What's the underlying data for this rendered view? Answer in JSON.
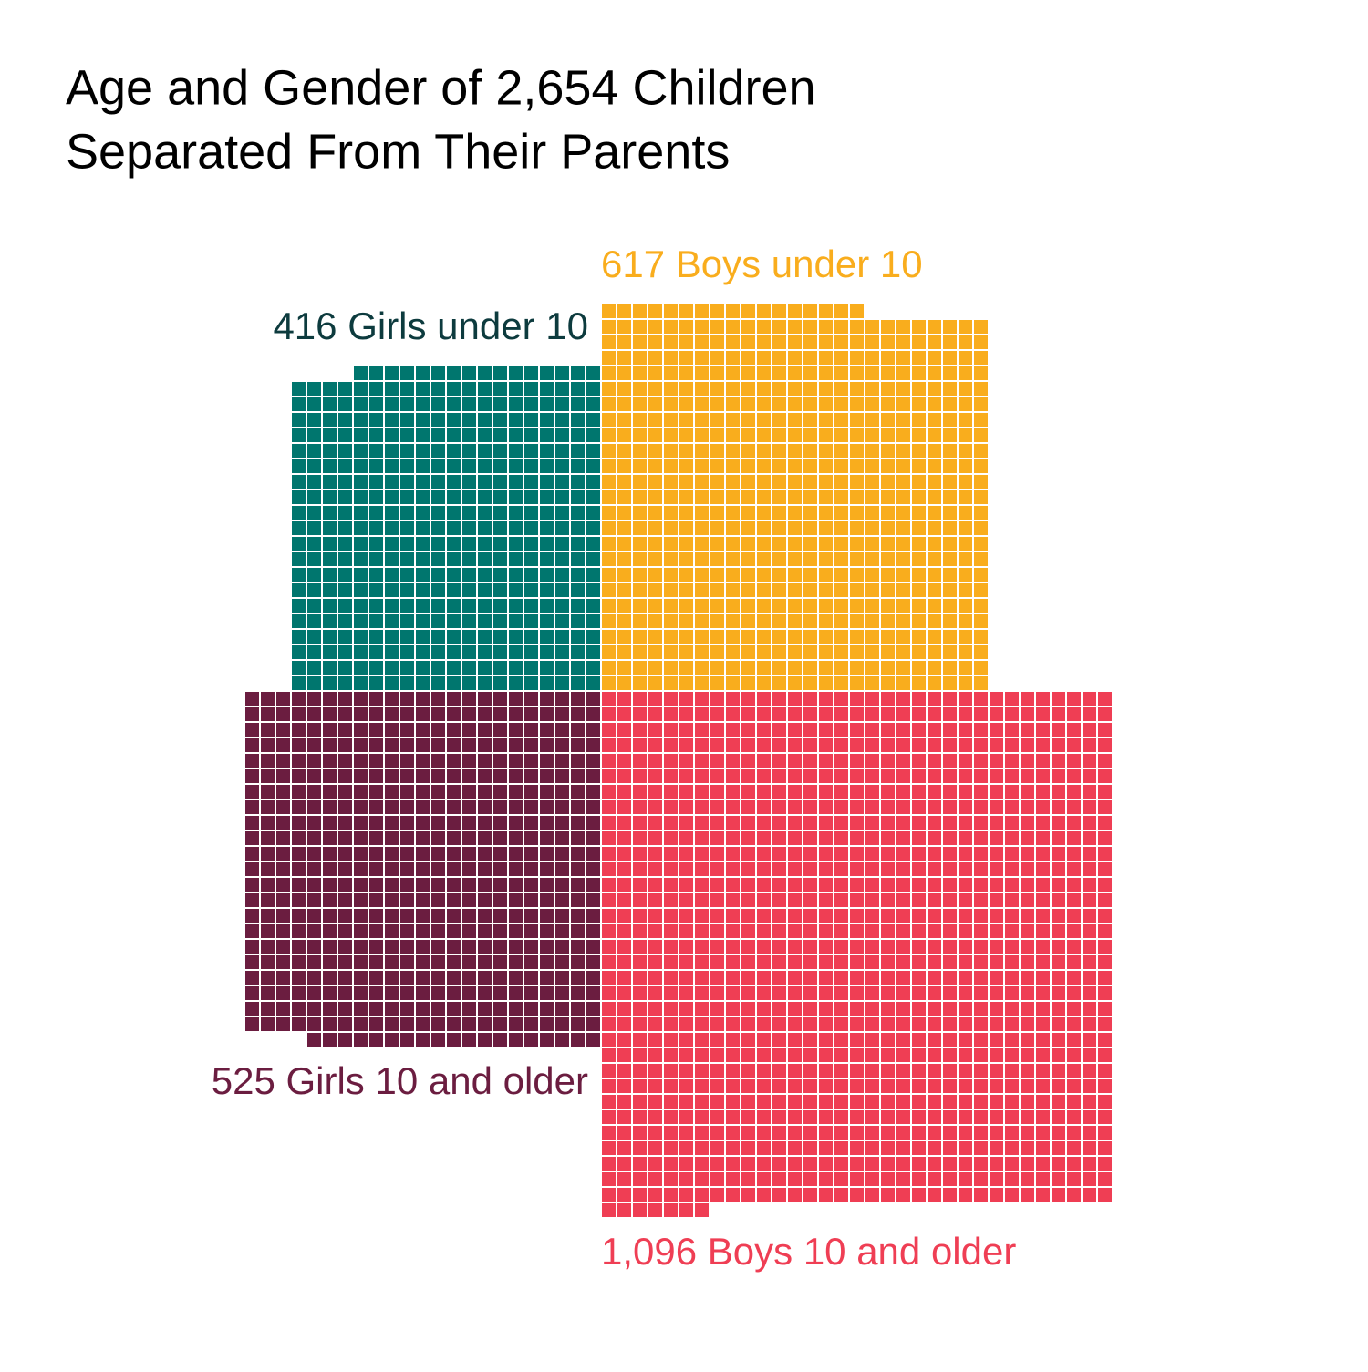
{
  "chart_data": {
    "type": "waffle",
    "title": "Age and Gender of 2,654 Children",
    "subtitle": "Separated From Their Parents",
    "categories": [
      "416 Girls under 10",
      "617 Boys under 10",
      "525 Girls 10 and older",
      "1,096 Boys 10 and older"
    ],
    "values": [
      416,
      617,
      525,
      1096
    ],
    "colors": [
      "#00766e",
      "#f9ad1d",
      "#6b1d40",
      "#ef3e54"
    ]
  }
}
